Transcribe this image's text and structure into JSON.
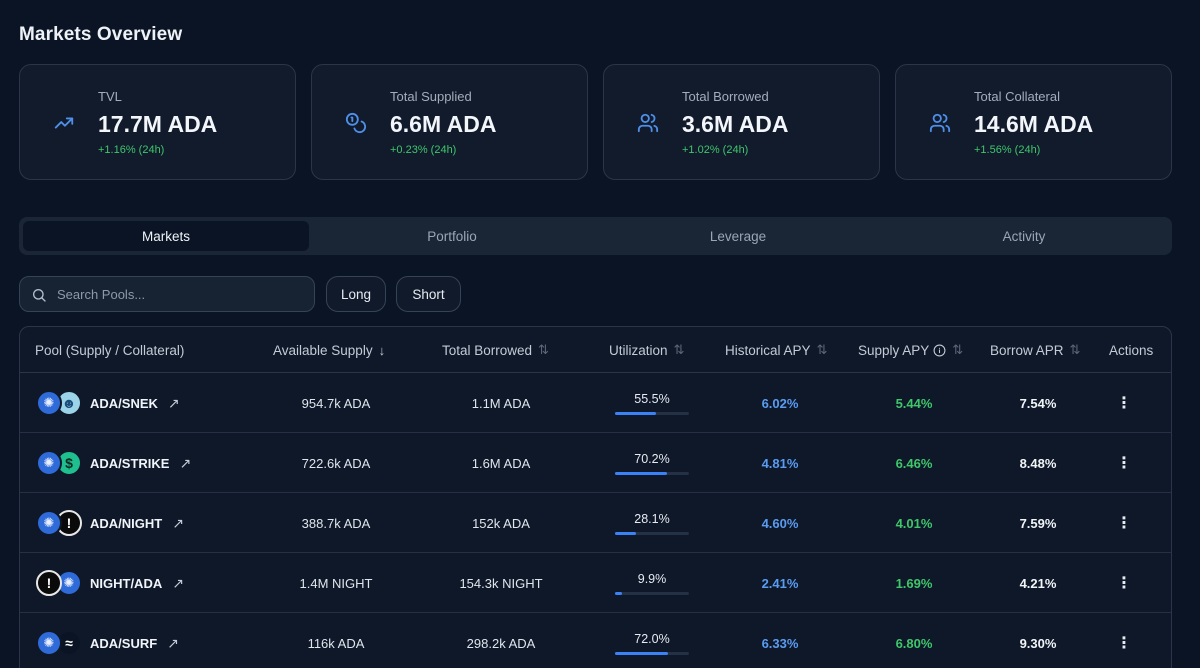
{
  "page": {
    "title": "Markets Overview"
  },
  "stats": [
    {
      "icon": "trending-up-icon",
      "label": "TVL",
      "value": "17.7M ADA",
      "change": "+1.16% (24h)"
    },
    {
      "icon": "coins-icon",
      "label": "Total Supplied",
      "value": "6.6M ADA",
      "change": "+0.23% (24h)"
    },
    {
      "icon": "users-icon",
      "label": "Total Borrowed",
      "value": "3.6M ADA",
      "change": "+1.02% (24h)"
    },
    {
      "icon": "users-icon",
      "label": "Total Collateral",
      "value": "14.6M ADA",
      "change": "+1.56% (24h)"
    }
  ],
  "tabs": [
    {
      "label": "Markets",
      "active": true
    },
    {
      "label": "Portfolio",
      "active": false
    },
    {
      "label": "Leverage",
      "active": false
    },
    {
      "label": "Activity",
      "active": false
    }
  ],
  "search": {
    "placeholder": "Search Pools...",
    "icon": "search-icon"
  },
  "filters": {
    "long": "Long",
    "short": "Short"
  },
  "table": {
    "headers": {
      "pool": "Pool (Supply / Collateral)",
      "available_supply": "Available Supply",
      "total_borrowed": "Total Borrowed",
      "utilization": "Utilization",
      "historical_apy": "Historical APY",
      "supply_apy": "Supply APY",
      "borrow_apr": "Borrow APR",
      "actions": "Actions"
    },
    "sort": {
      "active_column": "available_supply",
      "direction": "descending"
    },
    "rows": [
      {
        "pool": "ADA/SNEK",
        "icons": [
          "ada",
          "snek"
        ],
        "available_supply": "954.7k ADA",
        "total_borrowed": "1.1M ADA",
        "utilization": "55.5%",
        "utilization_value": 55.5,
        "historical_apy": "6.02%",
        "supply_apy": "5.44%",
        "borrow_apr": "7.54%"
      },
      {
        "pool": "ADA/STRIKE",
        "icons": [
          "ada",
          "strike"
        ],
        "available_supply": "722.6k ADA",
        "total_borrowed": "1.6M ADA",
        "utilization": "70.2%",
        "utilization_value": 70.2,
        "historical_apy": "4.81%",
        "supply_apy": "6.46%",
        "borrow_apr": "8.48%"
      },
      {
        "pool": "ADA/NIGHT",
        "icons": [
          "ada",
          "night"
        ],
        "available_supply": "388.7k ADA",
        "total_borrowed": "152k ADA",
        "utilization": "28.1%",
        "utilization_value": 28.1,
        "historical_apy": "4.60%",
        "supply_apy": "4.01%",
        "borrow_apr": "7.59%"
      },
      {
        "pool": "NIGHT/ADA",
        "icons": [
          "night",
          "ada"
        ],
        "available_supply": "1.4M NIGHT",
        "total_borrowed": "154.3k NIGHT",
        "utilization": "9.9%",
        "utilization_value": 9.9,
        "historical_apy": "2.41%",
        "supply_apy": "1.69%",
        "borrow_apr": "4.21%"
      },
      {
        "pool": "ADA/SURF",
        "icons": [
          "ada",
          "surf"
        ],
        "available_supply": "116k ADA",
        "total_borrowed": "298.2k ADA",
        "utilization": "72.0%",
        "utilization_value": 72.0,
        "historical_apy": "6.33%",
        "supply_apy": "6.80%",
        "borrow_apr": "9.30%"
      }
    ]
  },
  "colors": {
    "background": "#0b1424",
    "accent": "#3b82f6",
    "historical_apy": "#5a9cf2",
    "positive": "#3fc66b"
  }
}
